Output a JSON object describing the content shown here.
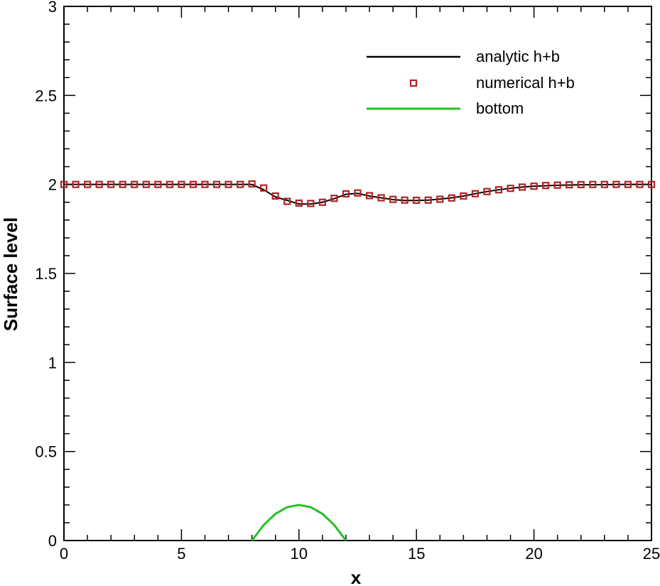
{
  "chart_data": {
    "type": "line",
    "title": "",
    "xlabel": "x",
    "ylabel": "Surface level",
    "xlim": [
      0,
      25
    ],
    "ylim": [
      0,
      3
    ],
    "xticks": [
      0,
      5,
      10,
      15,
      20,
      25
    ],
    "xtick_labels": [
      "0",
      "5",
      "10",
      "15",
      "20",
      "25"
    ],
    "yticks": [
      0,
      0.5,
      1,
      1.5,
      2,
      2.5,
      3
    ],
    "ytick_labels": [
      "0",
      "0.5",
      "1",
      "1.5",
      "2",
      "2.5",
      "3"
    ],
    "grid": false,
    "legend_position": "top-right",
    "series": [
      {
        "name": "analytic h+b",
        "style": "line",
        "color": "#000000",
        "x": [
          0,
          1,
          2,
          3,
          4,
          5,
          6,
          7,
          8,
          8.5,
          9,
          9.5,
          10,
          10.5,
          11,
          11.5,
          12,
          12.5,
          13,
          13.5,
          14,
          14.5,
          15,
          15.5,
          16,
          16.5,
          17,
          17.5,
          18,
          18.5,
          19,
          19.5,
          20,
          21,
          22,
          23,
          24,
          25
        ],
        "y": [
          2.0,
          2.0,
          2.0,
          2.0,
          2.0,
          2.0,
          2.0,
          2.0,
          2.0,
          1.97,
          1.93,
          1.91,
          1.89,
          1.89,
          1.9,
          1.92,
          1.945,
          1.95,
          1.935,
          1.925,
          1.915,
          1.91,
          1.91,
          1.912,
          1.918,
          1.925,
          1.935,
          1.948,
          1.96,
          1.97,
          1.978,
          1.985,
          1.99,
          1.995,
          1.998,
          1.999,
          2.0,
          2.0
        ]
      },
      {
        "name": "numerical h+b",
        "style": "markers",
        "color": "#b22222",
        "x": [
          0,
          0.5,
          1,
          1.5,
          2,
          2.5,
          3,
          3.5,
          4,
          4.5,
          5,
          5.5,
          6,
          6.5,
          7,
          7.5,
          8,
          8.5,
          9,
          9.5,
          10,
          10.5,
          11,
          11.5,
          12,
          12.5,
          13,
          13.5,
          14,
          14.5,
          15,
          15.5,
          16,
          16.5,
          17,
          17.5,
          18,
          18.5,
          19,
          19.5,
          20,
          20.5,
          21,
          21.5,
          22,
          22.5,
          23,
          23.5,
          24,
          24.5,
          25
        ],
        "y": [
          2.0,
          2.0,
          2.0,
          2.0,
          2.0,
          2.0,
          2.0,
          2.0,
          2.0,
          2.0,
          2.0,
          2.0,
          2.0,
          2.0,
          2.0,
          2.0,
          2.003,
          1.98,
          1.935,
          1.905,
          1.895,
          1.893,
          1.9,
          1.922,
          1.947,
          1.952,
          1.937,
          1.925,
          1.916,
          1.912,
          1.911,
          1.912,
          1.917,
          1.924,
          1.935,
          1.948,
          1.96,
          1.97,
          1.978,
          1.985,
          1.99,
          1.994,
          1.996,
          1.998,
          1.999,
          2.0,
          2.0,
          2.0,
          2.0,
          2.0,
          2.0
        ]
      },
      {
        "name": "bottom",
        "style": "line",
        "color": "#22c322",
        "x": [
          8,
          8.5,
          9,
          9.5,
          10,
          10.5,
          11,
          11.5,
          12
        ],
        "y": [
          0.0,
          0.0875,
          0.15,
          0.1875,
          0.2,
          0.1875,
          0.15,
          0.0875,
          0.0
        ]
      }
    ]
  }
}
